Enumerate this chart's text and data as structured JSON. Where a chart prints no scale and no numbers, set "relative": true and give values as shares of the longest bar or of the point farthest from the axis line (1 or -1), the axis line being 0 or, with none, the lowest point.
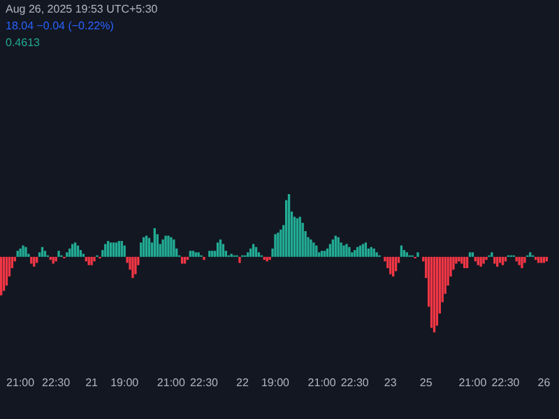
{
  "chart_data": {
    "type": "bar",
    "relative": true,
    "annotations": [
      "Aug 26, 2025 19:53 UTC+5:30",
      "18.04 −0.04 (−0.22%)",
      "0.4613"
    ],
    "categories": [
      null,
      null,
      null,
      null,
      null,
      null,
      null,
      "21:00",
      null,
      null,
      null,
      null,
      null,
      null,
      null,
      null,
      null,
      null,
      null,
      null,
      "22:30",
      null,
      null,
      null,
      null,
      null,
      null,
      null,
      null,
      null,
      null,
      null,
      null,
      "21",
      null,
      null,
      null,
      null,
      null,
      null,
      null,
      null,
      null,
      null,
      null,
      "19:00",
      null,
      null,
      null,
      null,
      null,
      null,
      null,
      null,
      null,
      null,
      null,
      null,
      null,
      null,
      null,
      null,
      "21:00",
      null,
      null,
      null,
      null,
      null,
      null,
      null,
      null,
      null,
      null,
      null,
      "22:30",
      null,
      null,
      null,
      null,
      null,
      null,
      null,
      null,
      null,
      null,
      null,
      null,
      null,
      "22",
      null,
      null,
      null,
      null,
      null,
      null,
      null,
      null,
      null,
      null,
      null,
      "19:00",
      null,
      null,
      null,
      null,
      null,
      null,
      null,
      null,
      null,
      null,
      null,
      null,
      null,
      null,
      null,
      null,
      "21:00",
      null,
      null,
      null,
      null,
      null,
      null,
      null,
      null,
      null,
      null,
      null,
      "22:30",
      null,
      null,
      null,
      null,
      null,
      null,
      null,
      null,
      null,
      null,
      null,
      null,
      "23",
      null,
      null,
      null,
      null,
      null,
      null,
      null,
      null,
      null,
      null,
      null,
      null,
      "25",
      null,
      null,
      null,
      null,
      null,
      null,
      null,
      null,
      null,
      null,
      null,
      null,
      null,
      null,
      null,
      null,
      "21:00",
      null,
      null,
      null,
      null,
      null,
      null,
      null,
      null,
      null,
      null,
      null,
      "22:30",
      null,
      null,
      null,
      null,
      null,
      null,
      null,
      null,
      null,
      null,
      null,
      null,
      null,
      "26",
      null
    ],
    "values": [
      -0.51,
      -0.45,
      -0.38,
      -0.26,
      -0.15,
      -0.06,
      0.08,
      0.11,
      0.15,
      0.13,
      0.04,
      -0.09,
      -0.13,
      -0.08,
      0.06,
      0.13,
      0.08,
      0.02,
      -0.04,
      -0.09,
      -0.06,
      0.08,
      0.02,
      -0.02,
      0.06,
      0.11,
      0.17,
      0.19,
      0.15,
      0.09,
      0.04,
      -0.06,
      -0.11,
      -0.11,
      -0.06,
      0.02,
      -0.02,
      0.09,
      0.17,
      0.21,
      0.19,
      0.19,
      0.19,
      0.21,
      0.21,
      0.15,
      -0.08,
      -0.17,
      -0.28,
      -0.23,
      -0.11,
      0.19,
      0.26,
      0.28,
      0.25,
      0.19,
      0.38,
      0.3,
      0.17,
      0.23,
      0.28,
      0.28,
      0.26,
      0.23,
      0.11,
      0.02,
      -0.09,
      -0.09,
      -0.04,
      0.08,
      0.08,
      0.06,
      0.06,
      0.02,
      -0.04,
      0,
      0.08,
      0.08,
      0.08,
      0.19,
      0.23,
      0.17,
      0.08,
      0.02,
      0.04,
      0.02,
      0.02,
      -0.08,
      0.02,
      0.02,
      0.06,
      0.11,
      0.17,
      0.13,
      0.06,
      0.02,
      -0.04,
      -0.06,
      -0.04,
      0.11,
      0.3,
      0.32,
      0.36,
      0.42,
      0.75,
      0.83,
      0.6,
      0.53,
      0.51,
      0.53,
      0.45,
      0.34,
      0.26,
      0.23,
      0.19,
      0.15,
      0.06,
      0.08,
      0.08,
      0.11,
      0.17,
      0.23,
      0.28,
      0.26,
      0.19,
      0.15,
      0.17,
      0.13,
      0.06,
      0.09,
      0.13,
      0.15,
      0.17,
      0.19,
      0.11,
      0.13,
      0.11,
      0.06,
      0.02,
      0,
      -0.06,
      -0.15,
      -0.23,
      -0.26,
      -0.19,
      -0.08,
      0.15,
      0.09,
      0.06,
      0.02,
      0.02,
      -0.02,
      0.06,
      0,
      -0.06,
      -0.28,
      -0.66,
      -0.94,
      -1,
      -0.91,
      -0.75,
      -0.6,
      -0.49,
      -0.38,
      -0.26,
      -0.17,
      -0.09,
      -0.06,
      -0.09,
      -0.15,
      -0.15,
      0.06,
      0.06,
      -0.06,
      -0.11,
      -0.13,
      -0.09,
      -0.04,
      0.02,
      0.06,
      -0.09,
      -0.13,
      -0.08,
      -0.11,
      -0.06,
      0.02,
      0.02,
      0.02,
      -0.06,
      -0.11,
      -0.15,
      -0.08,
      0.02,
      0.06,
      0.02,
      -0.04,
      -0.08,
      -0.08,
      -0.08,
      -0.06
    ],
    "colors": [
      "#f23645",
      "#f23645",
      "#f23645",
      "#f23645",
      "#f23645",
      "#f23645",
      "#22ab94",
      "#22ab94",
      "#22ab94",
      "#22ab94",
      "#22ab94",
      "#f23645",
      "#f23645",
      "#f23645",
      "#22ab94",
      "#22ab94",
      "#22ab94",
      "#22ab94",
      "#f23645",
      "#f23645",
      "#f23645",
      "#22ab94",
      "#22ab94",
      "#f23645",
      "#22ab94",
      "#22ab94",
      "#22ab94",
      "#22ab94",
      "#22ab94",
      "#22ab94",
      "#22ab94",
      "#f23645",
      "#f23645",
      "#f23645",
      "#f23645",
      "#22ab94",
      "#f23645",
      "#22ab94",
      "#22ab94",
      "#22ab94",
      "#22ab94",
      "#22ab94",
      "#22ab94",
      "#22ab94",
      "#22ab94",
      "#22ab94",
      "#f23645",
      "#f23645",
      "#f23645",
      "#f23645",
      "#f23645",
      "#22ab94",
      "#22ab94",
      "#22ab94",
      "#22ab94",
      "#22ab94",
      "#22ab94",
      "#22ab94",
      "#22ab94",
      "#22ab94",
      "#22ab94",
      "#22ab94",
      "#22ab94",
      "#22ab94",
      "#22ab94",
      "#22ab94",
      "#f23645",
      "#f23645",
      "#f23645",
      "#22ab94",
      "#22ab94",
      "#22ab94",
      "#22ab94",
      "#22ab94",
      "#f23645",
      "#22ab94",
      "#22ab94",
      "#22ab94",
      "#22ab94",
      "#22ab94",
      "#22ab94",
      "#22ab94",
      "#22ab94",
      "#22ab94",
      "#22ab94",
      "#22ab94",
      "#22ab94",
      "#f23645",
      "#22ab94",
      "#22ab94",
      "#22ab94",
      "#22ab94",
      "#22ab94",
      "#22ab94",
      "#22ab94",
      "#22ab94",
      "#f23645",
      "#f23645",
      "#f23645",
      "#22ab94",
      "#22ab94",
      "#22ab94",
      "#22ab94",
      "#22ab94",
      "#22ab94",
      "#22ab94",
      "#22ab94",
      "#22ab94",
      "#22ab94",
      "#22ab94",
      "#22ab94",
      "#22ab94",
      "#22ab94",
      "#22ab94",
      "#22ab94",
      "#22ab94",
      "#22ab94",
      "#22ab94",
      "#22ab94",
      "#22ab94",
      "#22ab94",
      "#22ab94",
      "#22ab94",
      "#22ab94",
      "#22ab94",
      "#22ab94",
      "#22ab94",
      "#22ab94",
      "#22ab94",
      "#22ab94",
      "#22ab94",
      "#22ab94",
      "#22ab94",
      "#22ab94",
      "#22ab94",
      "#22ab94",
      "#22ab94",
      "#22ab94",
      "#22ab94",
      "#22ab94",
      "#f23645",
      "#f23645",
      "#f23645",
      "#f23645",
      "#f23645",
      "#f23645",
      "#22ab94",
      "#22ab94",
      "#22ab94",
      "#22ab94",
      "#22ab94",
      "#f23645",
      "#22ab94",
      "#22ab94",
      "#f23645",
      "#f23645",
      "#f23645",
      "#f23645",
      "#f23645",
      "#f23645",
      "#f23645",
      "#f23645",
      "#f23645",
      "#f23645",
      "#f23645",
      "#f23645",
      "#f23645",
      "#f23645",
      "#f23645",
      "#f23645",
      "#f23645",
      "#22ab94",
      "#22ab94",
      "#f23645",
      "#f23645",
      "#f23645",
      "#f23645",
      "#f23645",
      "#22ab94",
      "#22ab94",
      "#f23645",
      "#f23645",
      "#f23645",
      "#f23645",
      "#f23645",
      "#22ab94",
      "#22ab94",
      "#22ab94",
      "#f23645",
      "#f23645",
      "#f23645",
      "#f23645",
      "#22ab94",
      "#22ab94",
      "#22ab94",
      "#f23645",
      "#f23645",
      "#f23645",
      "#f23645",
      "#f23645"
    ]
  }
}
